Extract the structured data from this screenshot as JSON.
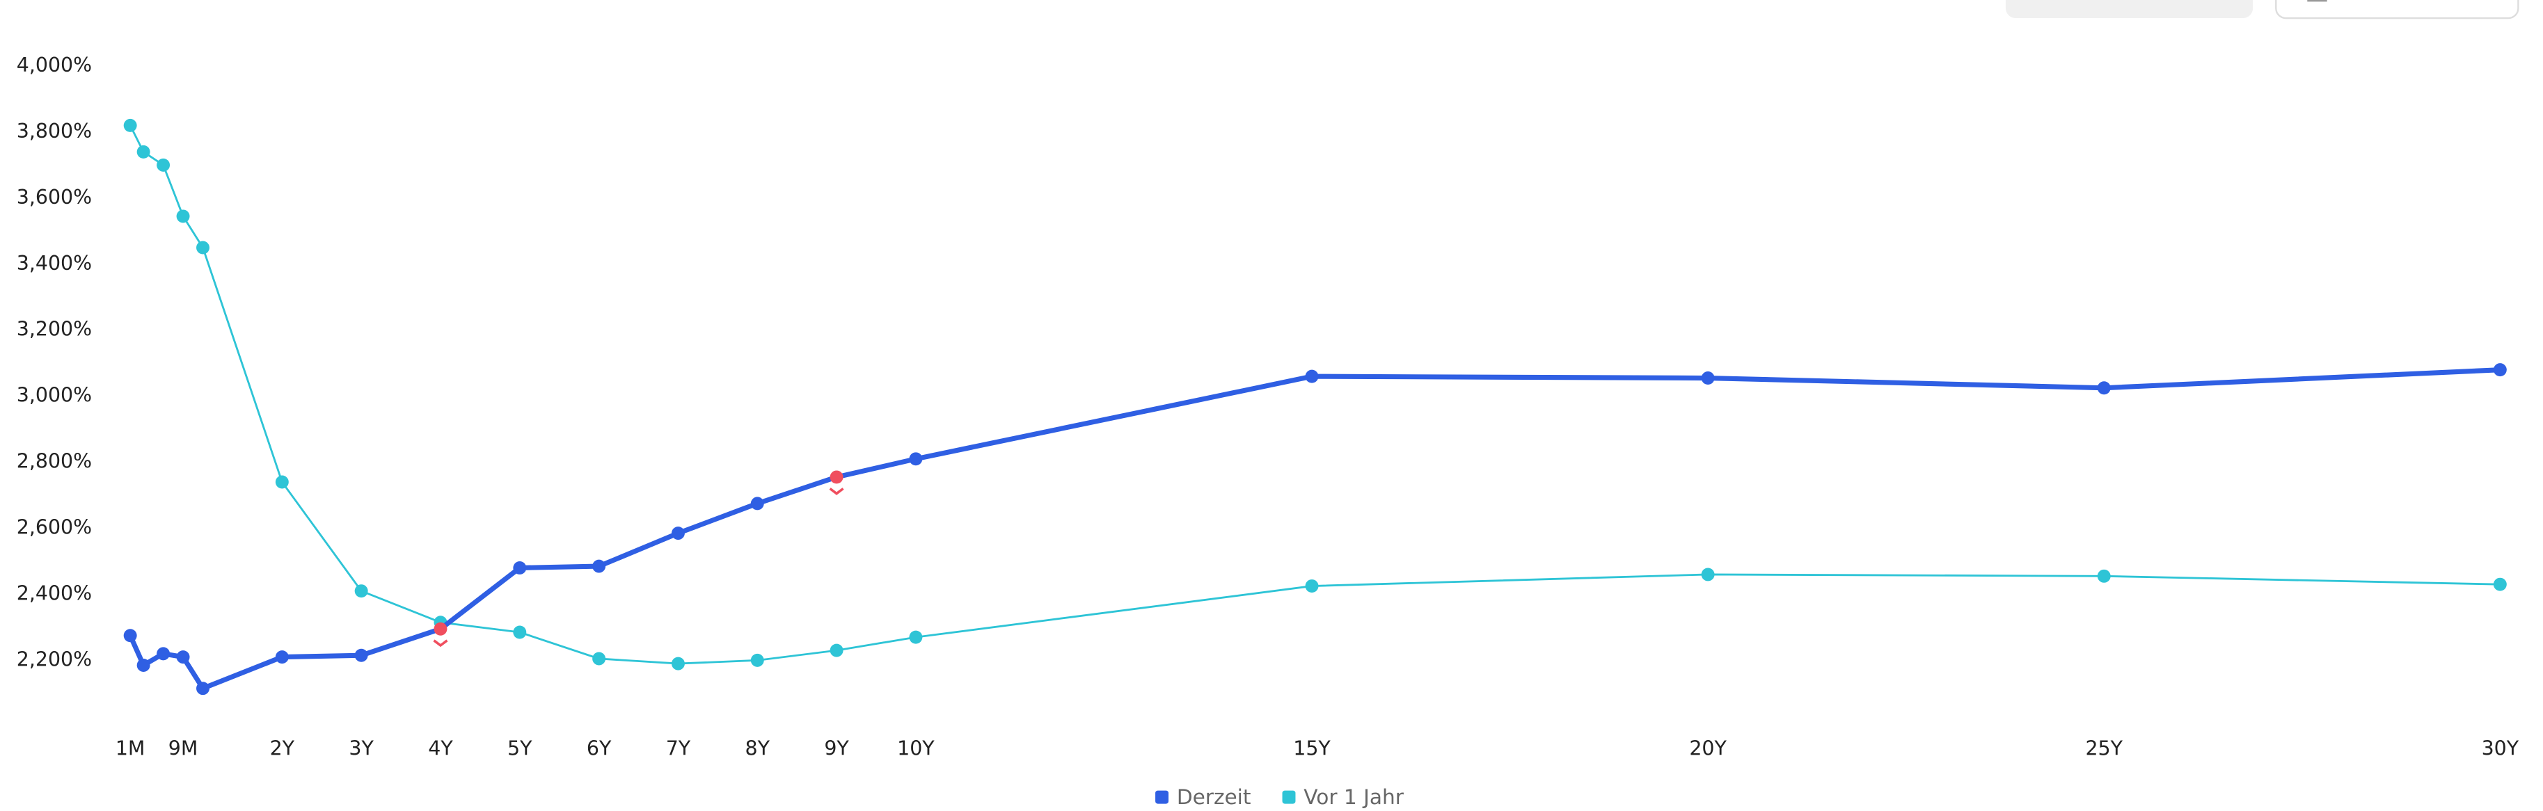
{
  "chart_data": {
    "type": "line",
    "x": [
      0.0833,
      0.25,
      0.5,
      0.75,
      1,
      2,
      3,
      4,
      5,
      6,
      7,
      8,
      9,
      10,
      15,
      20,
      25,
      30
    ],
    "series": [
      {
        "name": "Derzeit",
        "color": "#2f5fe3",
        "values": [
          2275,
          2185,
          2220,
          2210,
          2115,
          2210,
          2215,
          2295,
          2480,
          2485,
          2585,
          2675,
          2755,
          2810,
          3060,
          3055,
          3025,
          3080
        ]
      },
      {
        "name": "Vor 1 Jahr",
        "color": "#2ec4d6",
        "values": [
          3820,
          3740,
          3700,
          3545,
          3450,
          2740,
          2410,
          2315,
          2285,
          2205,
          2190,
          2200,
          2230,
          2270,
          2425,
          2460,
          2455,
          2430
        ]
      }
    ],
    "highlight_color": "#f04e5e",
    "highlight_points": [
      7,
      12
    ],
    "xlim": [
      0.0833,
      30
    ],
    "xticks": [
      {
        "value": 0.0833,
        "label": "1M"
      },
      {
        "value": 0.75,
        "label": "9M"
      },
      {
        "value": 2,
        "label": "2Y"
      },
      {
        "value": 3,
        "label": "3Y"
      },
      {
        "value": 4,
        "label": "4Y"
      },
      {
        "value": 5,
        "label": "5Y"
      },
      {
        "value": 6,
        "label": "6Y"
      },
      {
        "value": 7,
        "label": "7Y"
      },
      {
        "value": 8,
        "label": "8Y"
      },
      {
        "value": 9,
        "label": "9Y"
      },
      {
        "value": 10,
        "label": "10Y"
      },
      {
        "value": 15,
        "label": "15Y"
      },
      {
        "value": 20,
        "label": "20Y"
      },
      {
        "value": 25,
        "label": "25Y"
      },
      {
        "value": 30,
        "label": "30Y"
      }
    ],
    "ylim": [
      2000,
      4000
    ],
    "yticks": [
      {
        "value": 2200,
        "label": "2,200%"
      },
      {
        "value": 2400,
        "label": "2,400%"
      },
      {
        "value": 2600,
        "label": "2,600%"
      },
      {
        "value": 2800,
        "label": "2,800%"
      },
      {
        "value": 3000,
        "label": "3,000%"
      },
      {
        "value": 3200,
        "label": "3,200%"
      },
      {
        "value": 3400,
        "label": "3,400%"
      },
      {
        "value": 3600,
        "label": "3,600%"
      },
      {
        "value": 3800,
        "label": "3,800%"
      },
      {
        "value": 4000,
        "label": "4,000%"
      }
    ],
    "grid": false
  }
}
